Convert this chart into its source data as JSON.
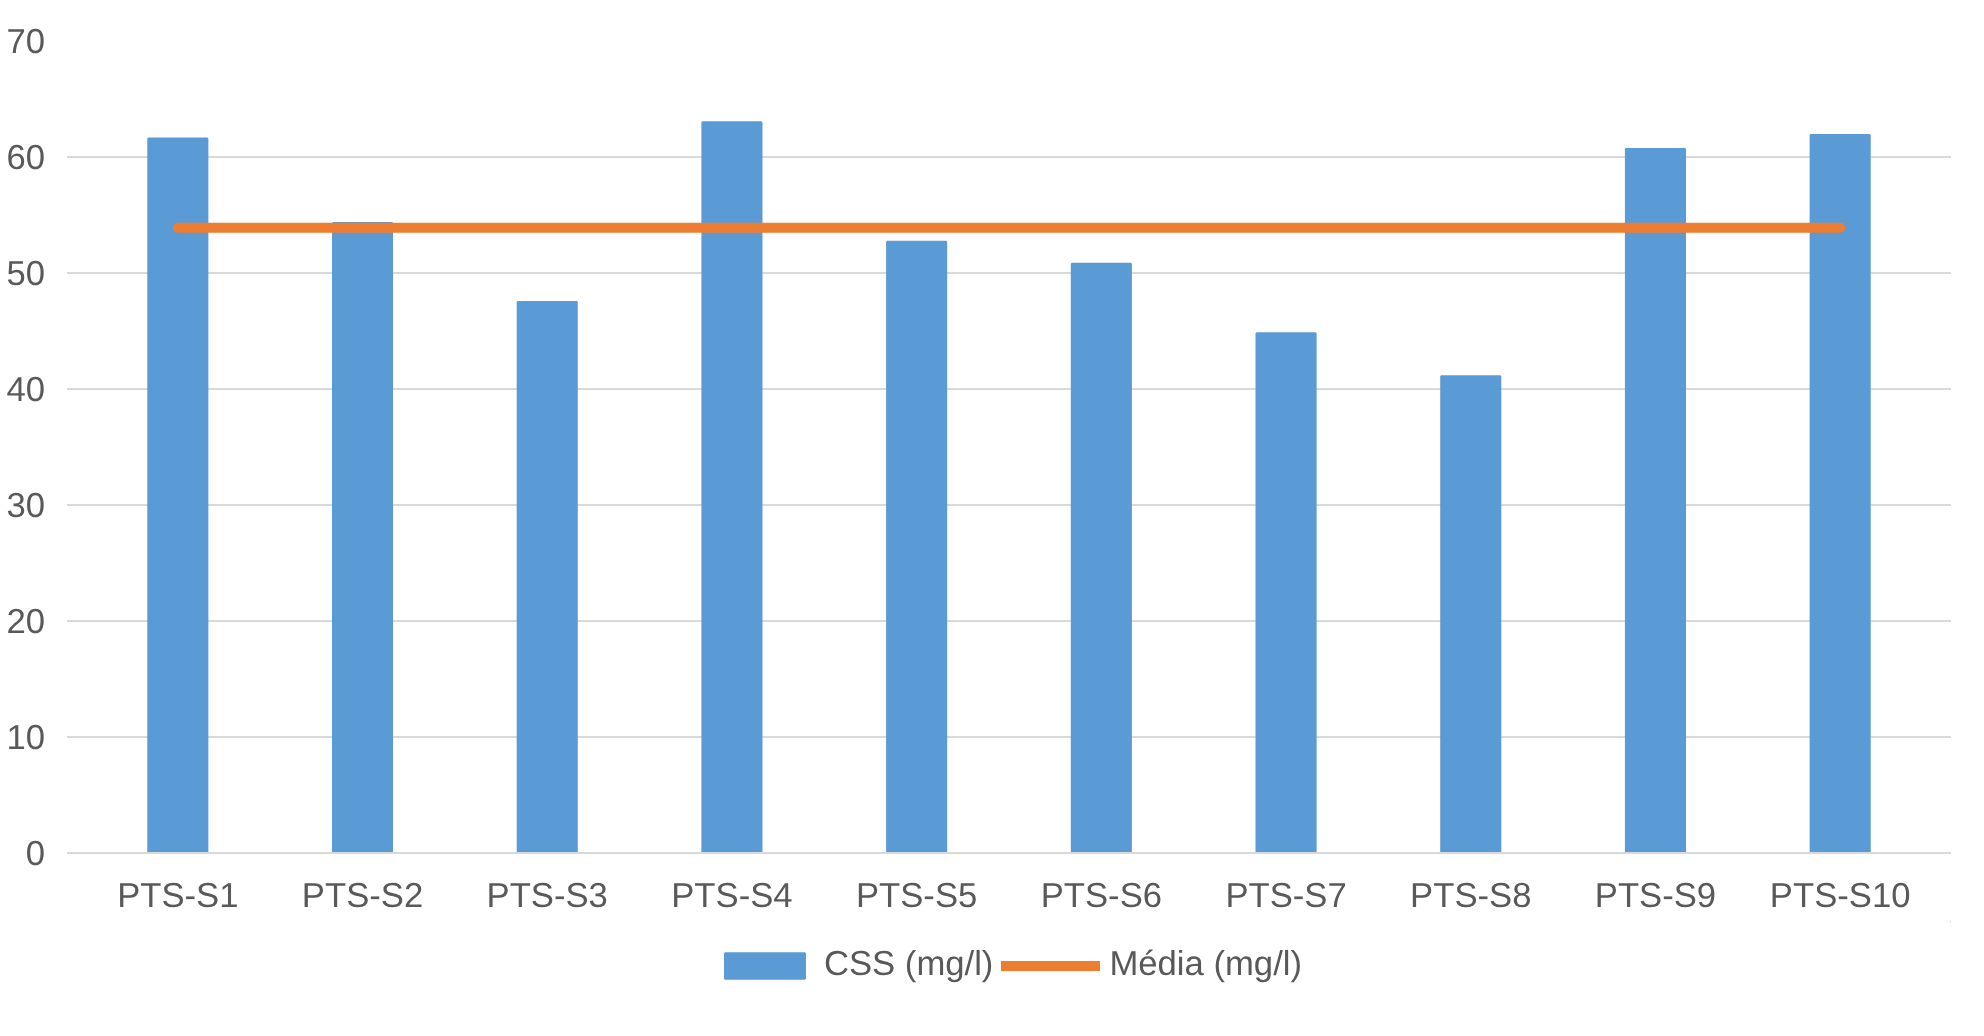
{
  "chart_data": {
    "type": "bar",
    "categories": [
      "PTS-S1",
      "PTS-S2",
      "PTS-S3",
      "PTS-S4",
      "PTS-S5",
      "PTS-S6",
      "PTS-S7",
      "PTS-S8",
      "PTS-S9",
      "PTS-S10"
    ],
    "series": [
      {
        "name": "CSS (mg/l)",
        "color": "#5b9bd5",
        "values": [
          61.6,
          54.3,
          47.5,
          63.0,
          52.7,
          50.8,
          44.8,
          41.1,
          60.7,
          61.9
        ]
      },
      {
        "name": "Média (mg/l)",
        "color": "#ed7d31",
        "type": "line",
        "values": [
          53.9,
          53.9,
          53.9,
          53.9,
          53.9,
          53.9,
          53.9,
          53.9,
          53.9,
          53.9
        ]
      }
    ],
    "ylim": [
      0,
      70
    ],
    "yticks": [
      0,
      10,
      20,
      30,
      40,
      50,
      60,
      70
    ],
    "grid": "y",
    "legend": "bottom"
  }
}
